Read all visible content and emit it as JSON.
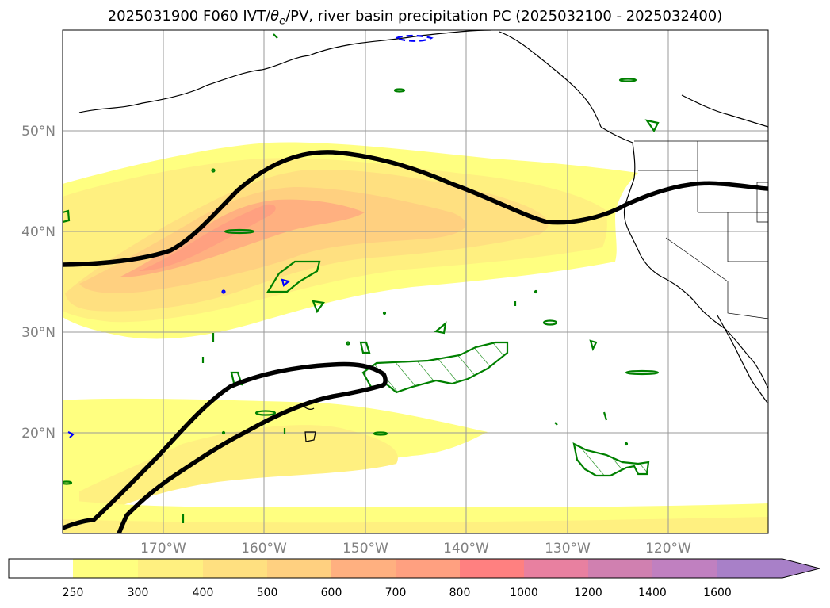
{
  "title": {
    "prefix": "2025031900 F060 IVT/",
    "theta": "θ",
    "theta_sub": "e",
    "suffix": "/PV, river basin precipitation PC (2025032100 - 2025032400)"
  },
  "map": {
    "lon_labels": [
      "170°W",
      "160°W",
      "150°W",
      "140°W",
      "130°W",
      "120°W"
    ],
    "lat_labels": [
      "50°N",
      "40°N",
      "30°N",
      "20°N"
    ],
    "colors": {
      "coast": "#000000",
      "contour_green": "#008000",
      "contour_blue": "#0000ff",
      "pv_line": "#000000"
    }
  },
  "colorbar": {
    "labels": [
      "250",
      "300",
      "400",
      "500",
      "600",
      "700",
      "800",
      "1000",
      "1200",
      "1400",
      "1600"
    ],
    "colors": [
      "#ffffff",
      "#ffff80",
      "#fff080",
      "#ffe080",
      "#ffd080",
      "#ffb080",
      "#ffa080",
      "#ff8080",
      "#e880a0",
      "#d080b0",
      "#c080c0",
      "#a880c8"
    ]
  }
}
